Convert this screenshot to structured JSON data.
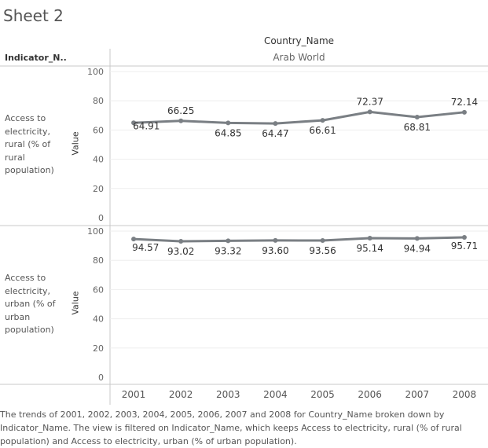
{
  "sheet_title": "Sheet 2",
  "column_header": {
    "name": "Country_Name",
    "value": "Arab World"
  },
  "row_header": "Indicator_N..",
  "caption": "The trends of 2001, 2002, 2003, 2004, 2005, 2006, 2007 and 2008 for Country_Name broken down by Indicator_Name. The view is filtered on Indicator_Name, which keeps Access to electricity, rural (% of rural population) and Access to electricity, urban (% of urban population).",
  "colors": {
    "line": "#7a7f84",
    "grid": "#eeeeee",
    "divider": "#c8c8c8"
  },
  "chart_data": {
    "type": "line",
    "x": [
      "2001",
      "2002",
      "2003",
      "2004",
      "2005",
      "2006",
      "2007",
      "2008"
    ],
    "ylim": [
      0,
      100
    ],
    "y_ticks": [
      "0",
      "20",
      "40",
      "60",
      "80",
      "100"
    ],
    "ylabel": "Value",
    "panels": [
      {
        "row_label": "Access to electricity, rural (% of rural population)",
        "row_label_lines": [
          "Access to",
          "electricity,",
          "rural (% of",
          "rural",
          "population)"
        ],
        "values": [
          64.91,
          66.25,
          64.85,
          64.47,
          66.61,
          72.37,
          68.81,
          72.14
        ],
        "labels": [
          "64.91",
          "66.25",
          "64.85",
          "64.47",
          "66.61",
          "72.37",
          "68.81",
          "72.14"
        ]
      },
      {
        "row_label": "Access to electricity, urban (% of urban population)",
        "row_label_lines": [
          "Access to",
          "electricity,",
          "urban (% of",
          "urban",
          "population)"
        ],
        "values": [
          94.57,
          93.02,
          93.32,
          93.6,
          93.56,
          95.14,
          94.94,
          95.71
        ],
        "labels": [
          "94.57",
          "93.02",
          "93.32",
          "93.60",
          "93.56",
          "95.14",
          "94.94",
          "95.71"
        ]
      }
    ]
  }
}
